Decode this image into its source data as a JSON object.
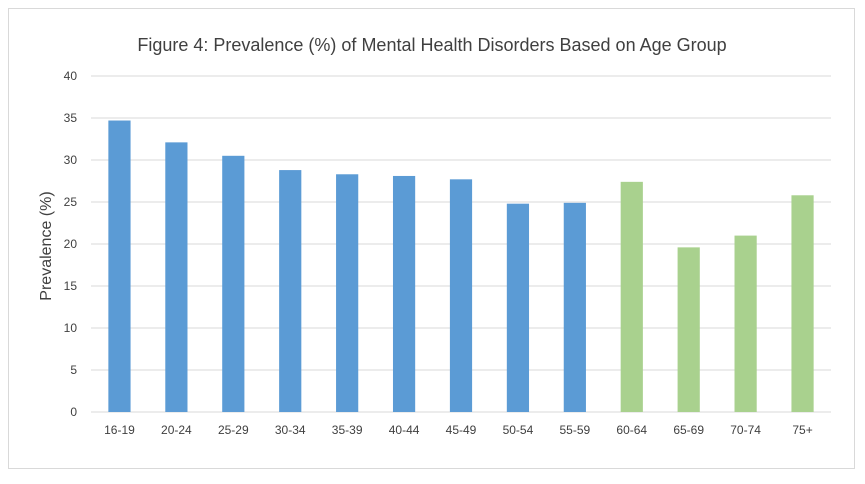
{
  "chart_data": {
    "type": "bar",
    "title": "Figure 4: Prevalence (%) of Mental Health Disorders Based on Age Group",
    "xlabel": "",
    "ylabel": "Prevalence (%)",
    "ylim": [
      0,
      40
    ],
    "yticks": [
      0,
      5,
      10,
      15,
      20,
      25,
      30,
      35,
      40
    ],
    "grid": true,
    "legend": "none",
    "categories": [
      "16-19",
      "20-24",
      "25-29",
      "30-34",
      "35-39",
      "40-44",
      "45-49",
      "50-54",
      "55-59",
      "60-64",
      "65-69",
      "70-74",
      "75+"
    ],
    "values": [
      34.7,
      32.1,
      30.5,
      28.8,
      28.3,
      28.1,
      27.7,
      24.8,
      24.9,
      27.4,
      19.6,
      21.0,
      25.8
    ],
    "bar_colors": [
      "#5b9bd5",
      "#5b9bd5",
      "#5b9bd5",
      "#5b9bd5",
      "#5b9bd5",
      "#5b9bd5",
      "#5b9bd5",
      "#5b9bd5",
      "#5b9bd5",
      "#a9d18e",
      "#a9d18e",
      "#a9d18e",
      "#a9d18e"
    ]
  }
}
